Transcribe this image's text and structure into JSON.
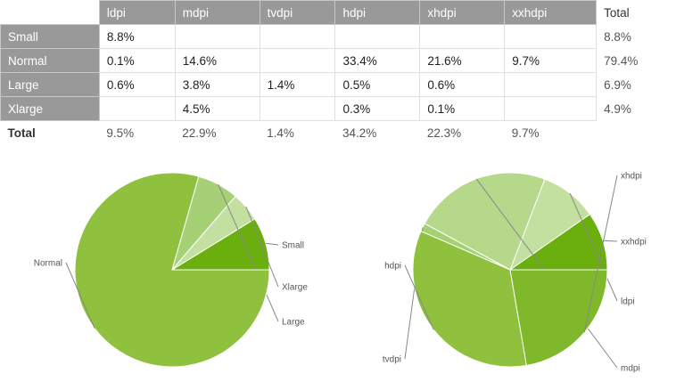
{
  "table": {
    "columns": [
      "ldpi",
      "mdpi",
      "tvdpi",
      "hdpi",
      "xhdpi",
      "xxhdpi"
    ],
    "total_label": "Total",
    "rows": [
      {
        "label": "Small",
        "cells": [
          "8.8%",
          "",
          "",
          "",
          "",
          ""
        ],
        "total": "8.8%"
      },
      {
        "label": "Normal",
        "cells": [
          "0.1%",
          "14.6%",
          "",
          "33.4%",
          "21.6%",
          "9.7%"
        ],
        "total": "79.4%"
      },
      {
        "label": "Large",
        "cells": [
          "0.6%",
          "3.8%",
          "1.4%",
          "0.5%",
          "0.6%",
          ""
        ],
        "total": "6.9%"
      },
      {
        "label": "Xlarge",
        "cells": [
          "",
          "4.5%",
          "",
          "0.3%",
          "0.1%",
          ""
        ],
        "total": "4.9%"
      }
    ],
    "totals": [
      "9.5%",
      "22.9%",
      "1.4%",
      "34.2%",
      "22.3%",
      "9.7%"
    ]
  },
  "colors": {
    "header_bg": "#999999",
    "pie_dark": "#6aaf0e",
    "pie_mid": "#8fc13f",
    "pie_medium_light": "#a6d075",
    "pie_light": "#c3e0a0",
    "pie_border": "#ffffff"
  },
  "chart_data": [
    {
      "type": "pie",
      "title": "",
      "slices": [
        {
          "label": "Small",
          "value": 8.8,
          "color": "#6aaf0e"
        },
        {
          "label": "Xlarge",
          "value": 4.9,
          "color": "#c3e0a0"
        },
        {
          "label": "Large",
          "value": 6.9,
          "color": "#a6d075"
        },
        {
          "label": "Normal",
          "value": 79.4,
          "color": "#8fc13f"
        }
      ]
    },
    {
      "type": "pie",
      "title": "",
      "slices": [
        {
          "label": "xxhdpi",
          "value": 9.7,
          "color": "#6aaf0e"
        },
        {
          "label": "ldpi",
          "value": 9.5,
          "color": "#c3e0a0"
        },
        {
          "label": "mdpi",
          "value": 22.9,
          "color": "#b5d88b"
        },
        {
          "label": "tvdpi",
          "value": 1.4,
          "color": "#a6d075"
        },
        {
          "label": "hdpi",
          "value": 34.2,
          "color": "#8fc13f"
        },
        {
          "label": "xhdpi",
          "value": 22.3,
          "color": "#7fb82a"
        }
      ]
    }
  ]
}
